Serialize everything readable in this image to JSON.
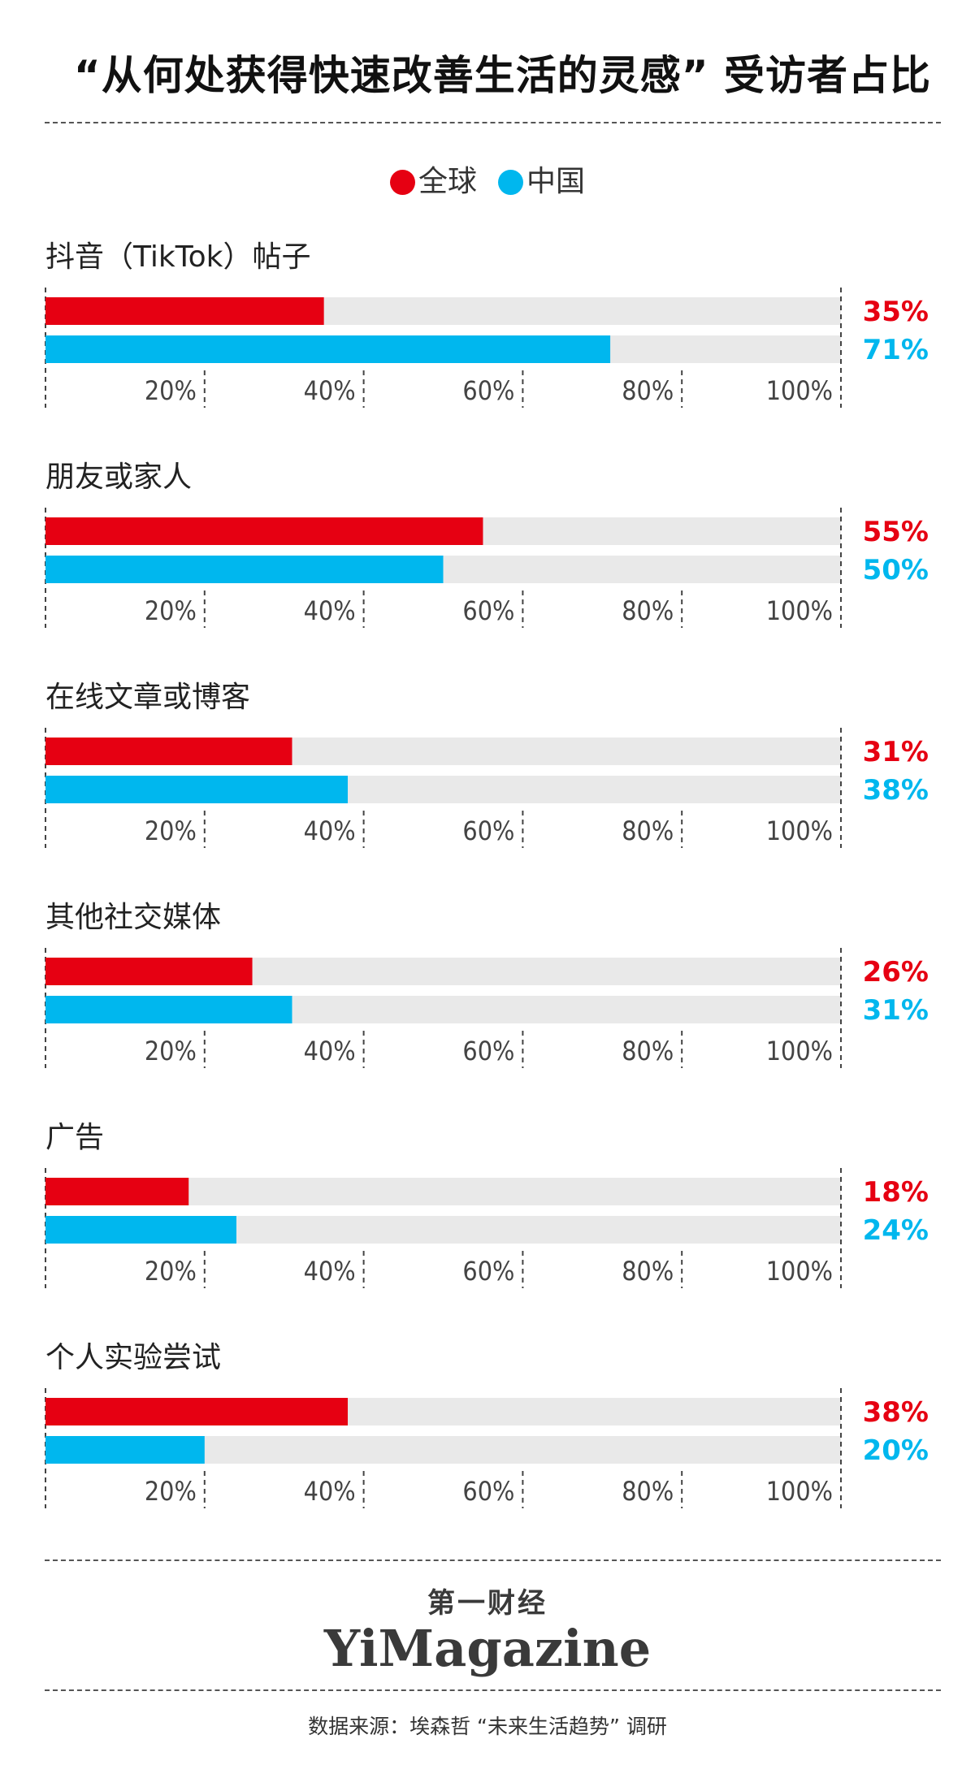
{
  "title": "“从何处获得快速改善生活的灵感” 受访者占比",
  "legend": [
    {
      "label": "全球",
      "color": "#e60012"
    },
    {
      "label": "中国",
      "color": "#00b7ee"
    }
  ],
  "colors": {
    "global": "#e60012",
    "china": "#00b7ee",
    "track": "#e9e9e9"
  },
  "chart_data": {
    "type": "bar",
    "orientation": "horizontal",
    "title": "“从何处获得快速改善生活的灵感” 受访者占比",
    "categories": [
      "抖音（TikTok）帖子",
      "朋友或家人",
      "在线文章或博客",
      "其他社交媒体",
      "广告",
      "个人实验尝试"
    ],
    "series": [
      {
        "name": "全球",
        "color": "#e60012",
        "values": [
          35,
          55,
          31,
          26,
          18,
          38
        ]
      },
      {
        "name": "中国",
        "color": "#00b7ee",
        "values": [
          71,
          50,
          38,
          31,
          24,
          20
        ]
      }
    ],
    "xlim": [
      0,
      100
    ],
    "xticks": [
      20,
      40,
      60,
      80,
      100
    ],
    "tick_labels": [
      "20%",
      "40%",
      "60%",
      "80%",
      "100%"
    ],
    "value_labels": [
      [
        "35%",
        "71%"
      ],
      [
        "55%",
        "50%"
      ],
      [
        "31%",
        "38%"
      ],
      [
        "26%",
        "31%"
      ],
      [
        "18%",
        "24%"
      ],
      [
        "38%",
        "20%"
      ]
    ],
    "legend_position": "top-center",
    "grid": false
  },
  "logo": {
    "cn": "第一财经",
    "en": "YiMagazine"
  },
  "source": "数据来源：埃森哲 “未来生活趋势” 调研"
}
